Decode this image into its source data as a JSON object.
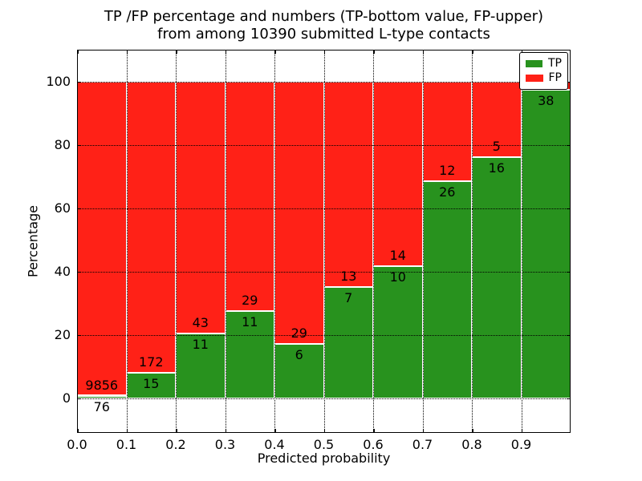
{
  "chart_data": {
    "type": "bar",
    "stacked": true,
    "title_line1": "TP /FP percentage and numbers (TP-bottom value, FP-upper)",
    "title_line2": "from among 10390 submitted L-type contacts",
    "xlabel": "Predicted probability",
    "ylabel": "Percentage",
    "xlim": [
      0.0,
      1.0
    ],
    "ylim": [
      -11,
      110
    ],
    "grid": true,
    "colors": {
      "tp": "#28921E",
      "fp": "#FF2117",
      "bar_edge": "#ffffff"
    },
    "yticks": [
      {
        "value": 0,
        "label": "0"
      },
      {
        "value": 20,
        "label": "20"
      },
      {
        "value": 40,
        "label": "40"
      },
      {
        "value": 60,
        "label": "60"
      },
      {
        "value": 80,
        "label": "80"
      },
      {
        "value": 100,
        "label": "100"
      }
    ],
    "xticks": [
      {
        "value": 0.0,
        "label": "0.0"
      },
      {
        "value": 0.1,
        "label": "0.1"
      },
      {
        "value": 0.2,
        "label": "0.2"
      },
      {
        "value": 0.3,
        "label": "0.3"
      },
      {
        "value": 0.4,
        "label": "0.4"
      },
      {
        "value": 0.5,
        "label": "0.5"
      },
      {
        "value": 0.6,
        "label": "0.6"
      },
      {
        "value": 0.7,
        "label": "0.7"
      },
      {
        "value": 0.8,
        "label": "0.8"
      },
      {
        "value": 0.9,
        "label": "0.9"
      }
    ],
    "bins": [
      {
        "range": [
          0.0,
          0.1
        ],
        "tp_pct": 0.77,
        "fp_pct": 99.23,
        "tp_count_label": "76",
        "fp_count_label": "9856"
      },
      {
        "range": [
          0.1,
          0.2
        ],
        "tp_pct": 8.02,
        "fp_pct": 91.98,
        "tp_count_label": "15",
        "fp_count_label": "172"
      },
      {
        "range": [
          0.2,
          0.3
        ],
        "tp_pct": 20.37,
        "fp_pct": 79.63,
        "tp_count_label": "11",
        "fp_count_label": "43"
      },
      {
        "range": [
          0.3,
          0.4
        ],
        "tp_pct": 27.5,
        "fp_pct": 72.5,
        "tp_count_label": "11",
        "fp_count_label": "29"
      },
      {
        "range": [
          0.4,
          0.5
        ],
        "tp_pct": 17.14,
        "fp_pct": 82.86,
        "tp_count_label": "6",
        "fp_count_label": "29"
      },
      {
        "range": [
          0.5,
          0.6
        ],
        "tp_pct": 35.0,
        "fp_pct": 65.0,
        "tp_count_label": "7",
        "fp_count_label": "13"
      },
      {
        "range": [
          0.6,
          0.7
        ],
        "tp_pct": 41.67,
        "fp_pct": 58.33,
        "tp_count_label": "10",
        "fp_count_label": "14"
      },
      {
        "range": [
          0.7,
          0.8
        ],
        "tp_pct": 68.42,
        "fp_pct": 31.58,
        "tp_count_label": "26",
        "fp_count_label": "12"
      },
      {
        "range": [
          0.8,
          0.9
        ],
        "tp_pct": 76.19,
        "fp_pct": 23.81,
        "tp_count_label": "16",
        "fp_count_label": "5"
      },
      {
        "range": [
          0.9,
          1.0
        ],
        "tp_pct": 97.44,
        "fp_pct": 2.56,
        "tp_count_label": "38",
        "fp_count_label": ""
      }
    ],
    "legend": {
      "position": "upper-right",
      "entries": [
        {
          "label": "TP",
          "color": "#28921E"
        },
        {
          "label": "FP",
          "color": "#FF2117"
        }
      ]
    }
  }
}
